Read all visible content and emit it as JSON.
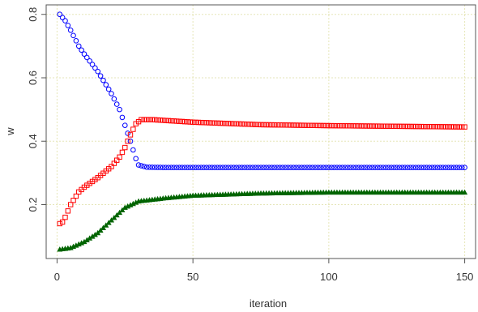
{
  "chart_data": {
    "type": "scatter",
    "title": "",
    "xlabel": "iteration",
    "ylabel": "w",
    "xlim": [
      -4,
      154
    ],
    "ylim": [
      0.03,
      0.83
    ],
    "xticks": [
      0,
      50,
      100,
      150
    ],
    "xtick_labels": [
      "0",
      "50",
      "100",
      "150"
    ],
    "yticks": [
      0.2,
      0.4,
      0.6,
      0.8
    ],
    "ytick_labels": [
      "0.2",
      "0.4",
      "0.6",
      "0.8"
    ],
    "grid": true,
    "legend": "none",
    "series": [
      {
        "marker": "circle",
        "color": "#0000ff",
        "knots": [
          [
            1,
            0.8
          ],
          [
            3,
            0.78
          ],
          [
            5,
            0.75
          ],
          [
            8,
            0.7
          ],
          [
            10,
            0.675
          ],
          [
            15,
            0.62
          ],
          [
            20,
            0.55
          ],
          [
            23,
            0.5
          ],
          [
            25,
            0.45
          ],
          [
            27,
            0.4
          ],
          [
            29,
            0.345
          ],
          [
            30,
            0.325
          ],
          [
            33,
            0.318
          ],
          [
            40,
            0.317
          ],
          [
            150,
            0.317
          ]
        ]
      },
      {
        "marker": "square",
        "color": "#ff0000",
        "knots": [
          [
            1,
            0.14
          ],
          [
            2,
            0.145
          ],
          [
            3,
            0.16
          ],
          [
            5,
            0.2
          ],
          [
            8,
            0.24
          ],
          [
            10,
            0.255
          ],
          [
            15,
            0.285
          ],
          [
            20,
            0.32
          ],
          [
            23,
            0.35
          ],
          [
            25,
            0.38
          ],
          [
            27,
            0.42
          ],
          [
            29,
            0.455
          ],
          [
            31,
            0.468
          ],
          [
            35,
            0.468
          ],
          [
            50,
            0.46
          ],
          [
            75,
            0.452
          ],
          [
            100,
            0.449
          ],
          [
            150,
            0.445
          ]
        ]
      },
      {
        "marker": "triangle",
        "color": "#006400",
        "knots": [
          [
            1,
            0.058
          ],
          [
            5,
            0.063
          ],
          [
            10,
            0.082
          ],
          [
            15,
            0.11
          ],
          [
            20,
            0.15
          ],
          [
            25,
            0.19
          ],
          [
            30,
            0.21
          ],
          [
            40,
            0.22
          ],
          [
            50,
            0.228
          ],
          [
            75,
            0.235
          ],
          [
            100,
            0.238
          ],
          [
            150,
            0.238
          ]
        ]
      }
    ]
  }
}
